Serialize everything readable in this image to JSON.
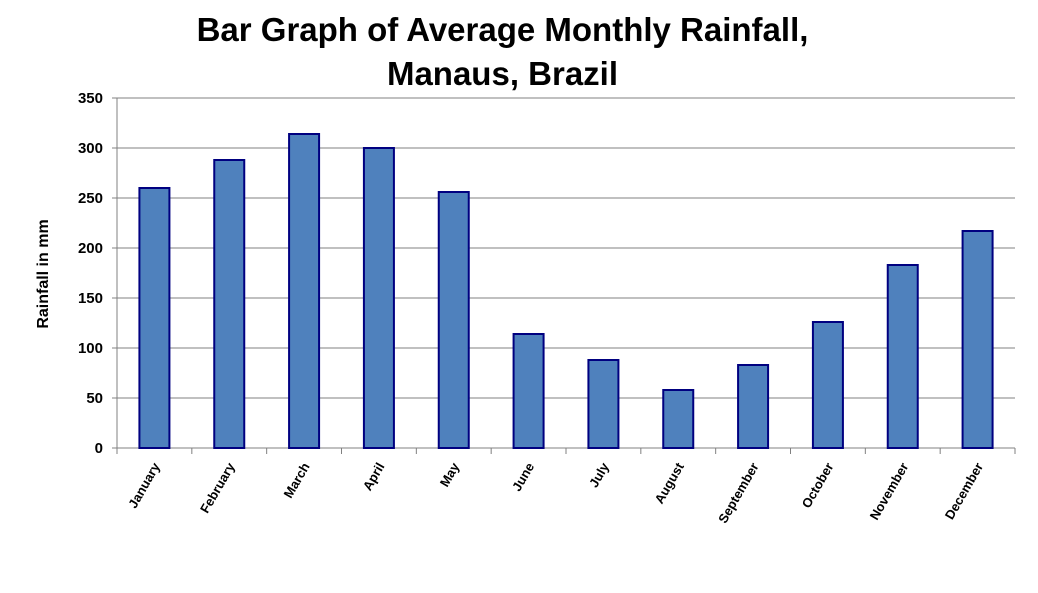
{
  "chart_data": {
    "type": "bar",
    "title_lines": [
      "Bar Graph of Average Monthly Rainfall,",
      "Manaus, Brazil"
    ],
    "xlabel": "",
    "ylabel": "Rainfall in mm",
    "categories": [
      "January",
      "February",
      "March",
      "April",
      "May",
      "June",
      "July",
      "August",
      "September",
      "October",
      "November",
      "December"
    ],
    "values": [
      260,
      288,
      314,
      300,
      256,
      114,
      88,
      58,
      83,
      126,
      183,
      217
    ],
    "ylim": [
      0,
      350
    ],
    "yticks": [
      0,
      50,
      100,
      150,
      200,
      250,
      300,
      350
    ],
    "grid": true,
    "legend": "none",
    "colors": {
      "bar_fill": "#4f81bd",
      "bar_stroke": "#000080",
      "grid": "#808080",
      "axis": "#808080"
    }
  }
}
